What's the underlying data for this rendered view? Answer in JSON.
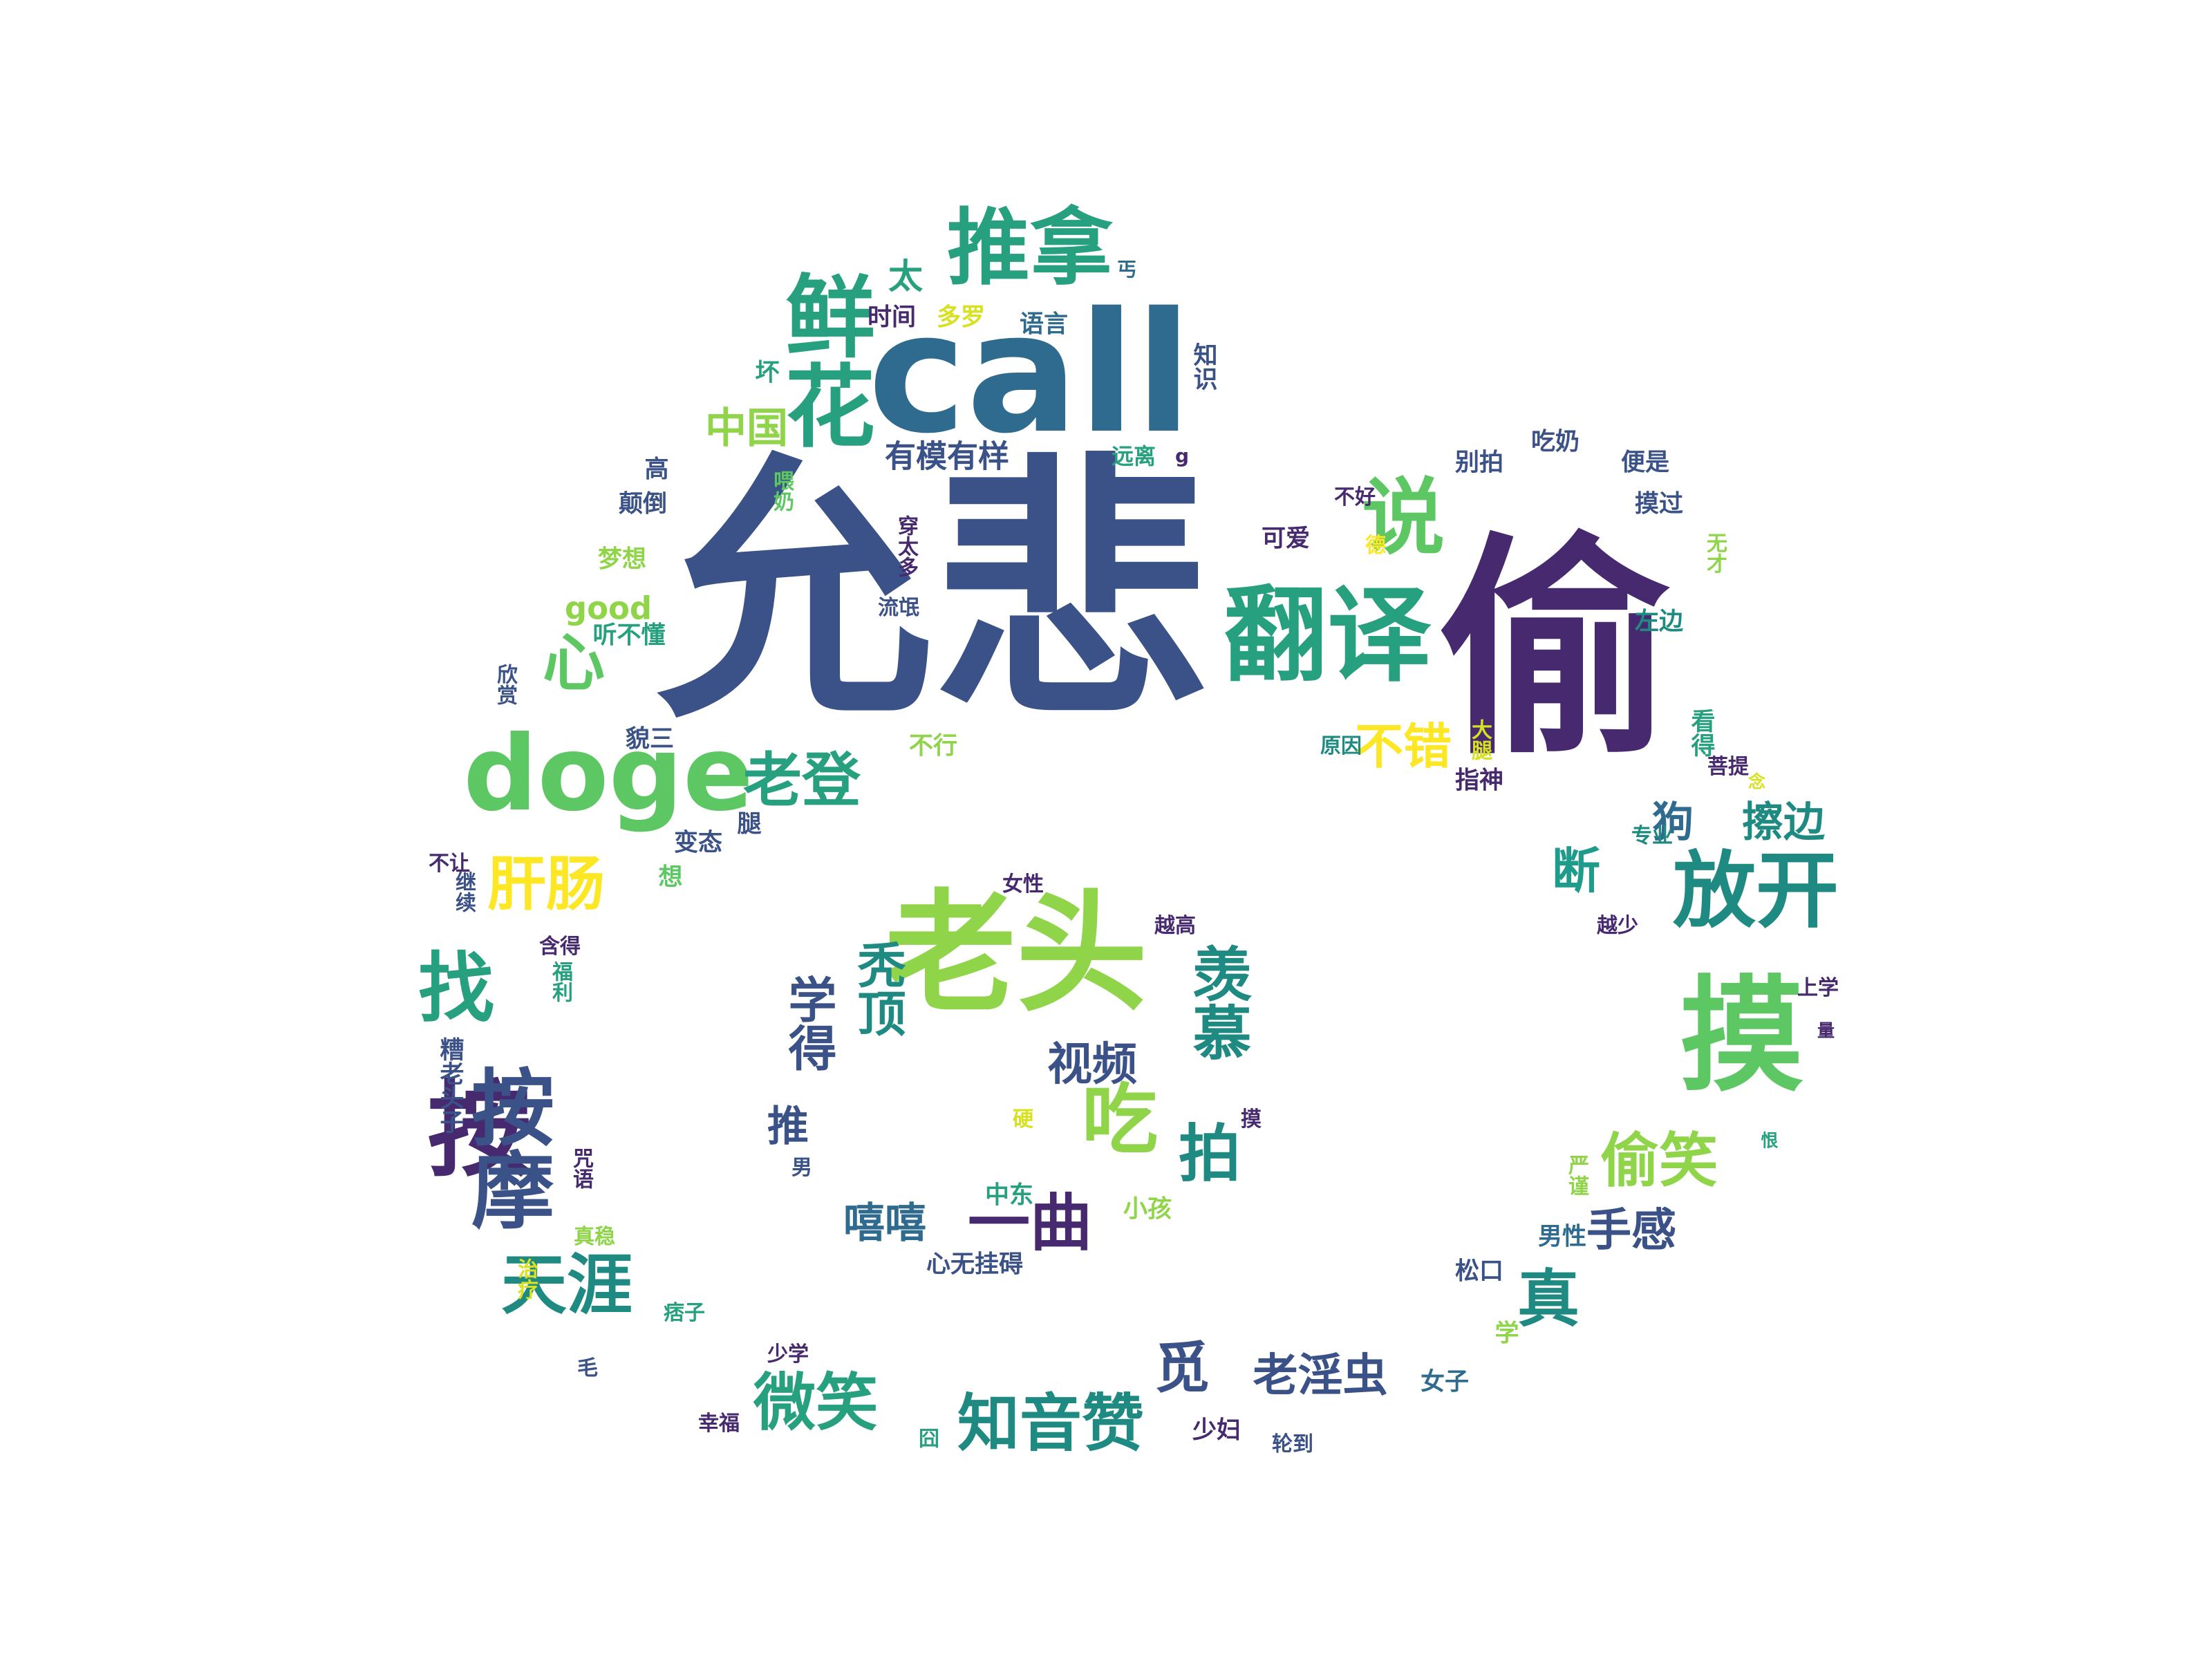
{
  "palette": {
    "c0": "#3b5288",
    "c1": "#46296f",
    "c2": "#2e6b8e",
    "c3": "#1f8a82",
    "c4": "#26a07f",
    "c5": "#5dc863",
    "c6": "#8fd449",
    "c7": "#d7e11f",
    "c8": "#fde725",
    "c9": "#1e9b8a"
  },
  "words": [
    {
      "text": "允悲",
      "color": "c0"
    },
    {
      "text": "call",
      "color": "c2"
    },
    {
      "text": "推拿",
      "color": "c4"
    },
    {
      "text": "鲜花",
      "color": "c4"
    },
    {
      "text": "翻译",
      "color": "c4"
    },
    {
      "text": "说",
      "color": "c5"
    },
    {
      "text": "偷",
      "color": "c1"
    },
    {
      "text": "按",
      "color": "c1"
    },
    {
      "text": "doge",
      "color": "c5"
    },
    {
      "text": "心",
      "color": "c5"
    },
    {
      "text": "老登",
      "color": "c4"
    },
    {
      "text": "肝肠",
      "color": "c8"
    },
    {
      "text": "老头",
      "color": "c6"
    },
    {
      "text": "放开",
      "color": "c3"
    },
    {
      "text": "摸",
      "color": "c5"
    },
    {
      "text": "按摩",
      "color": "c0"
    },
    {
      "text": "找",
      "color": "c4"
    },
    {
      "text": "吃",
      "color": "c6"
    },
    {
      "text": "拍",
      "color": "c3"
    },
    {
      "text": "一曲",
      "color": "c1"
    },
    {
      "text": "天涯",
      "color": "c3"
    },
    {
      "text": "微笑",
      "color": "c4"
    },
    {
      "text": "知音赞",
      "color": "c3"
    },
    {
      "text": "觅",
      "color": "c0"
    },
    {
      "text": "老淫虫",
      "color": "c0"
    },
    {
      "text": "真",
      "color": "c3"
    },
    {
      "text": "偷笑",
      "color": "c6"
    },
    {
      "text": "羡慕",
      "color": "c3"
    },
    {
      "text": "秃顶",
      "color": "c3"
    },
    {
      "text": "学得",
      "color": "c0"
    },
    {
      "text": "视频",
      "color": "c0"
    },
    {
      "text": "推",
      "color": "c0"
    },
    {
      "text": "嘻嘻",
      "color": "c2"
    },
    {
      "text": "狗",
      "color": "c2"
    },
    {
      "text": "擦边",
      "color": "c3"
    },
    {
      "text": "断",
      "color": "c9"
    },
    {
      "text": "不错",
      "color": "c8"
    },
    {
      "text": "手感",
      "color": "c0"
    },
    {
      "text": "中国",
      "color": "c6"
    },
    {
      "text": "有模有样",
      "color": "c0"
    },
    {
      "text": "太",
      "color": "c4"
    },
    {
      "text": "时间",
      "color": "c1"
    },
    {
      "text": "多罗",
      "color": "c7"
    },
    {
      "text": "语言",
      "color": "c2"
    },
    {
      "text": "丐",
      "color": "c2"
    },
    {
      "text": "坏",
      "color": "c4"
    },
    {
      "text": "知识",
      "color": "c0"
    },
    {
      "text": "远离",
      "color": "c4"
    },
    {
      "text": "g",
      "color": "c1"
    },
    {
      "text": "高",
      "color": "c0"
    },
    {
      "text": "颠倒",
      "color": "c0"
    },
    {
      "text": "喂奶",
      "color": "c5"
    },
    {
      "text": "穿太多",
      "color": "c1"
    },
    {
      "text": "梦想",
      "color": "c6"
    },
    {
      "text": "good",
      "color": "c6"
    },
    {
      "text": "听不懂",
      "color": "c4"
    },
    {
      "text": "流氓",
      "color": "c0"
    },
    {
      "text": "欣赏",
      "color": "c0"
    },
    {
      "text": "貌三",
      "color": "c0"
    },
    {
      "text": "不行",
      "color": "c6"
    },
    {
      "text": "变态",
      "color": "c0"
    },
    {
      "text": "腿",
      "color": "c0"
    },
    {
      "text": "想",
      "color": "c5"
    },
    {
      "text": "不让",
      "color": "c1"
    },
    {
      "text": "继续",
      "color": "c0"
    },
    {
      "text": "含得",
      "color": "c1"
    },
    {
      "text": "福利",
      "color": "c4"
    },
    {
      "text": "女性",
      "color": "c1"
    },
    {
      "text": "越高",
      "color": "c1"
    },
    {
      "text": "别拍",
      "color": "c0"
    },
    {
      "text": "吃奶",
      "color": "c0"
    },
    {
      "text": "便是",
      "color": "c0"
    },
    {
      "text": "不好",
      "color": "c1"
    },
    {
      "text": "摸过",
      "color": "c0"
    },
    {
      "text": "可爱",
      "color": "c1"
    },
    {
      "text": "德",
      "color": "c8"
    },
    {
      "text": "无才",
      "color": "c6"
    },
    {
      "text": "左边",
      "color": "c3"
    },
    {
      "text": "原因",
      "color": "c3"
    },
    {
      "text": "大腿",
      "color": "c7"
    },
    {
      "text": "看得",
      "color": "c4"
    },
    {
      "text": "指神",
      "color": "c1"
    },
    {
      "text": "菩提",
      "color": "c1"
    },
    {
      "text": "念",
      "color": "c7"
    },
    {
      "text": "专业",
      "color": "c3"
    },
    {
      "text": "越少",
      "color": "c1"
    },
    {
      "text": "上学",
      "color": "c1"
    },
    {
      "text": "量",
      "color": "c1"
    },
    {
      "text": "硬",
      "color": "c7"
    },
    {
      "text": "摸",
      "color": "c1"
    },
    {
      "text": "恨",
      "color": "c4"
    },
    {
      "text": "男",
      "color": "c0"
    },
    {
      "text": "中东",
      "color": "c4"
    },
    {
      "text": "小孩",
      "color": "c6"
    },
    {
      "text": "心无挂碍",
      "color": "c0"
    },
    {
      "text": "严谨",
      "color": "c6"
    },
    {
      "text": "男性",
      "color": "c2"
    },
    {
      "text": "松口",
      "color": "c0"
    },
    {
      "text": "学",
      "color": "c6"
    },
    {
      "text": "女子",
      "color": "c2"
    },
    {
      "text": "少妇",
      "color": "c1"
    },
    {
      "text": "轮到",
      "color": "c0"
    },
    {
      "text": "囧",
      "color": "c4"
    },
    {
      "text": "幸福",
      "color": "c1"
    },
    {
      "text": "少学",
      "color": "c1"
    },
    {
      "text": "毛",
      "color": "c0"
    },
    {
      "text": "痞子",
      "color": "c4"
    },
    {
      "text": "治疗",
      "color": "c7"
    },
    {
      "text": "真稳",
      "color": "c6"
    },
    {
      "text": "糟老头子",
      "color": "c0"
    },
    {
      "text": "咒语",
      "color": "c1"
    }
  ]
}
